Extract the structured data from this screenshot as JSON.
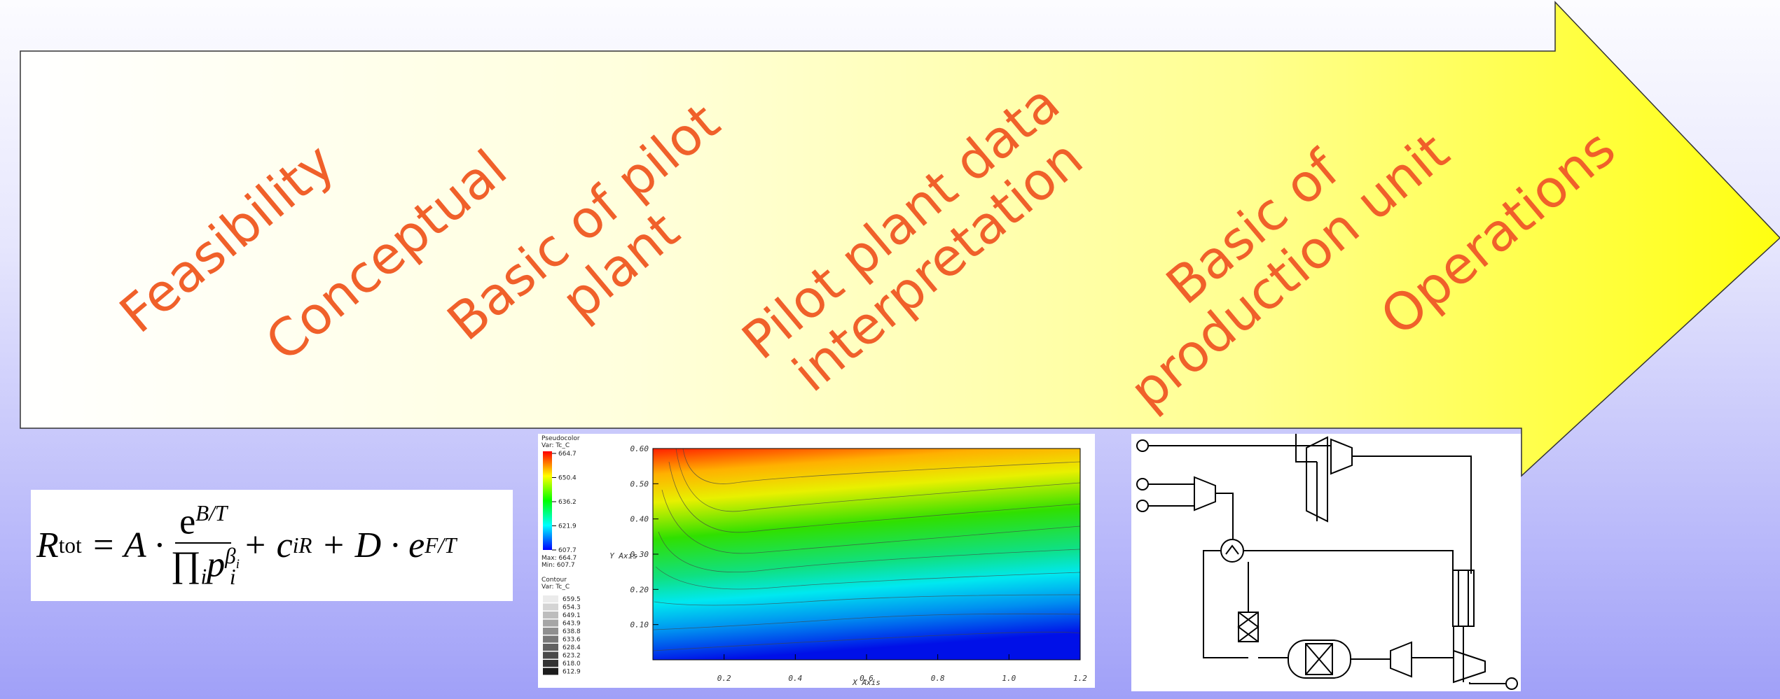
{
  "stages": [
    {
      "lines": [
        "Feasibility"
      ]
    },
    {
      "lines": [
        "Conceptual"
      ]
    },
    {
      "lines": [
        "Basic of pilot",
        "plant"
      ]
    },
    {
      "lines": [
        "Pilot plant data",
        "interpretation"
      ]
    },
    {
      "lines": [
        "Basic of",
        "production unit"
      ]
    },
    {
      "lines": [
        "Operations"
      ]
    }
  ],
  "formula": {
    "R": "R",
    "tot": "tot",
    "eq": "= A ·",
    "num_e": "e",
    "num_sup": "B/T",
    "prod": "∏",
    "prod_sub": "i",
    "p": "p",
    "p_sub": "i",
    "p_sup": "β",
    "p_sup_sub": "i",
    "plus1": "+ c",
    "c_sub": "iR",
    "plus2": "+ D ·",
    "e2": "e",
    "e2_sup": "F/T"
  },
  "contour_plot": {
    "pseudocolor_title": "Pseudocolor",
    "pseudocolor_var": "Var: Tc_C",
    "colorbar_labels": [
      "664.7",
      "650.4",
      "636.2",
      "621.9",
      "607.7"
    ],
    "max_label": "Max: 664.7",
    "min_label": "Min: 607.7",
    "contour_title": "Contour",
    "contour_var": "Var: Tc_C",
    "contour_levels": [
      "659.5",
      "654.3",
      "649.1",
      "643.9",
      "638.8",
      "633.6",
      "628.4",
      "623.2",
      "618.0",
      "612.9"
    ],
    "y_ticks": [
      "0.10",
      "0.20",
      "0.30",
      "0.40",
      "0.50",
      "0.60"
    ],
    "x_ticks": [
      "0.2",
      "0.4",
      "0.6",
      "0.8",
      "1.0",
      "1.2"
    ],
    "y_axis_label": "Y Axis",
    "x_axis_label": "X Axis"
  }
}
